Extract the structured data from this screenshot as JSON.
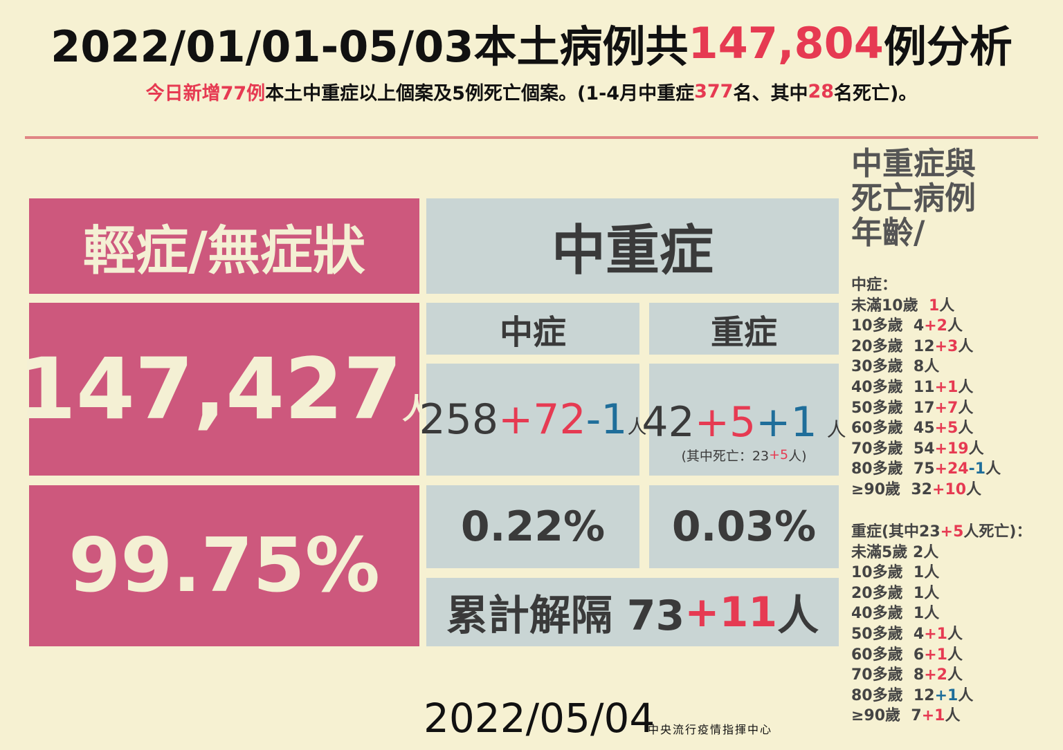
{
  "header": {
    "title": [
      {
        "text": "2022/01/01-05/03本土病例共"
      },
      {
        "text": "147,804",
        "color": "#e63a52"
      },
      {
        "text": "例分析"
      }
    ],
    "subtitle": [
      {
        "text": "今日新增77例",
        "color": "#e63a52"
      },
      {
        "text": "本土中重症以上個案及5例死亡個案。(1-4月中重症"
      },
      {
        "text": "377",
        "color": "#e63a52"
      },
      {
        "text": "名、其中"
      },
      {
        "text": "28",
        "color": "#e63a52"
      },
      {
        "text": "名死亡)。"
      }
    ]
  },
  "left": {
    "label": "輕症/無症狀",
    "count": "147,427",
    "unit": "人",
    "percent": "99.75%"
  },
  "mid": {
    "title": "中重症",
    "moderate": {
      "label": "中症",
      "count": [
        {
          "text": "258"
        },
        {
          "text": "+72",
          "color": "#e63a52"
        },
        {
          "text": "-1",
          "color": "#1f6e9a"
        }
      ],
      "unit": "人",
      "rate": "0.22%"
    },
    "severe": {
      "label": "重症",
      "count": [
        {
          "text": "42"
        },
        {
          "text": "+5",
          "color": "#e63a52"
        },
        {
          "text": "+1",
          "color": "#1f6e9a"
        }
      ],
      "unit": "人",
      "note": [
        {
          "text": "(其中死亡：23"
        },
        {
          "text": "+5",
          "color": "#e63a52"
        },
        {
          "text": "人)"
        }
      ],
      "rate": "0.03%"
    },
    "released": [
      {
        "text": "累計解隔 73"
      },
      {
        "text": "+11",
        "color": "#e63a52"
      },
      {
        "text": "人"
      }
    ]
  },
  "side": {
    "heading": [
      "中重症與",
      "死亡病例",
      "年齡/"
    ],
    "moderate": {
      "title": "中症：",
      "rows": [
        [
          {
            "text": "未滿10歲  "
          },
          {
            "text": "1",
            "color": "#e63a52"
          },
          {
            "text": "人"
          }
        ],
        [
          {
            "text": "10多歲  4"
          },
          {
            "text": "+2",
            "color": "#e63a52"
          },
          {
            "text": "人"
          }
        ],
        [
          {
            "text": "20多歲  12"
          },
          {
            "text": "+3",
            "color": "#e63a52"
          },
          {
            "text": "人"
          }
        ],
        [
          {
            "text": "30多歲  8人"
          }
        ],
        [
          {
            "text": "40多歲  11"
          },
          {
            "text": "+1",
            "color": "#e63a52"
          },
          {
            "text": "人"
          }
        ],
        [
          {
            "text": "50多歲  17"
          },
          {
            "text": "+7",
            "color": "#e63a52"
          },
          {
            "text": "人"
          }
        ],
        [
          {
            "text": "60多歲  45"
          },
          {
            "text": "+5",
            "color": "#e63a52"
          },
          {
            "text": "人"
          }
        ],
        [
          {
            "text": "70多歲  54"
          },
          {
            "text": "+19",
            "color": "#e63a52"
          },
          {
            "text": "人"
          }
        ],
        [
          {
            "text": "80多歲  75"
          },
          {
            "text": "+24",
            "color": "#e63a52"
          },
          {
            "text": "-1",
            "color": "#1f6e9a"
          },
          {
            "text": "人"
          }
        ],
        [
          {
            "text": "≥90歲  32"
          },
          {
            "text": "+10",
            "color": "#e63a52"
          },
          {
            "text": "人"
          }
        ]
      ]
    },
    "severe": {
      "title": [
        {
          "text": "重症(其中23"
        },
        {
          "text": "+5",
          "color": "#e63a52"
        },
        {
          "text": "人死亡)："
        }
      ],
      "rows": [
        [
          {
            "text": "未滿5歲 2人"
          }
        ],
        [
          {
            "text": "10多歲  1人"
          }
        ],
        [
          {
            "text": "20多歲  1人"
          }
        ],
        [
          {
            "text": "40多歲  1人"
          }
        ],
        [
          {
            "text": "50多歲  4"
          },
          {
            "text": "+1",
            "color": "#e63a52"
          },
          {
            "text": "人"
          }
        ],
        [
          {
            "text": "60多歲  6"
          },
          {
            "text": "+1",
            "color": "#e63a52"
          },
          {
            "text": "人"
          }
        ],
        [
          {
            "text": "70多歲  8"
          },
          {
            "text": "+2",
            "color": "#e63a52"
          },
          {
            "text": "人"
          }
        ],
        [
          {
            "text": "80多歲  12"
          },
          {
            "text": "+1",
            "color": "#1f6e9a"
          },
          {
            "text": "人"
          }
        ],
        [
          {
            "text": "≥90歲  7"
          },
          {
            "text": "+1",
            "color": "#e63a52"
          },
          {
            "text": "人"
          }
        ]
      ]
    }
  },
  "footer": {
    "date": "2022/05/04",
    "org": "中央流行疫情指揮中心"
  }
}
